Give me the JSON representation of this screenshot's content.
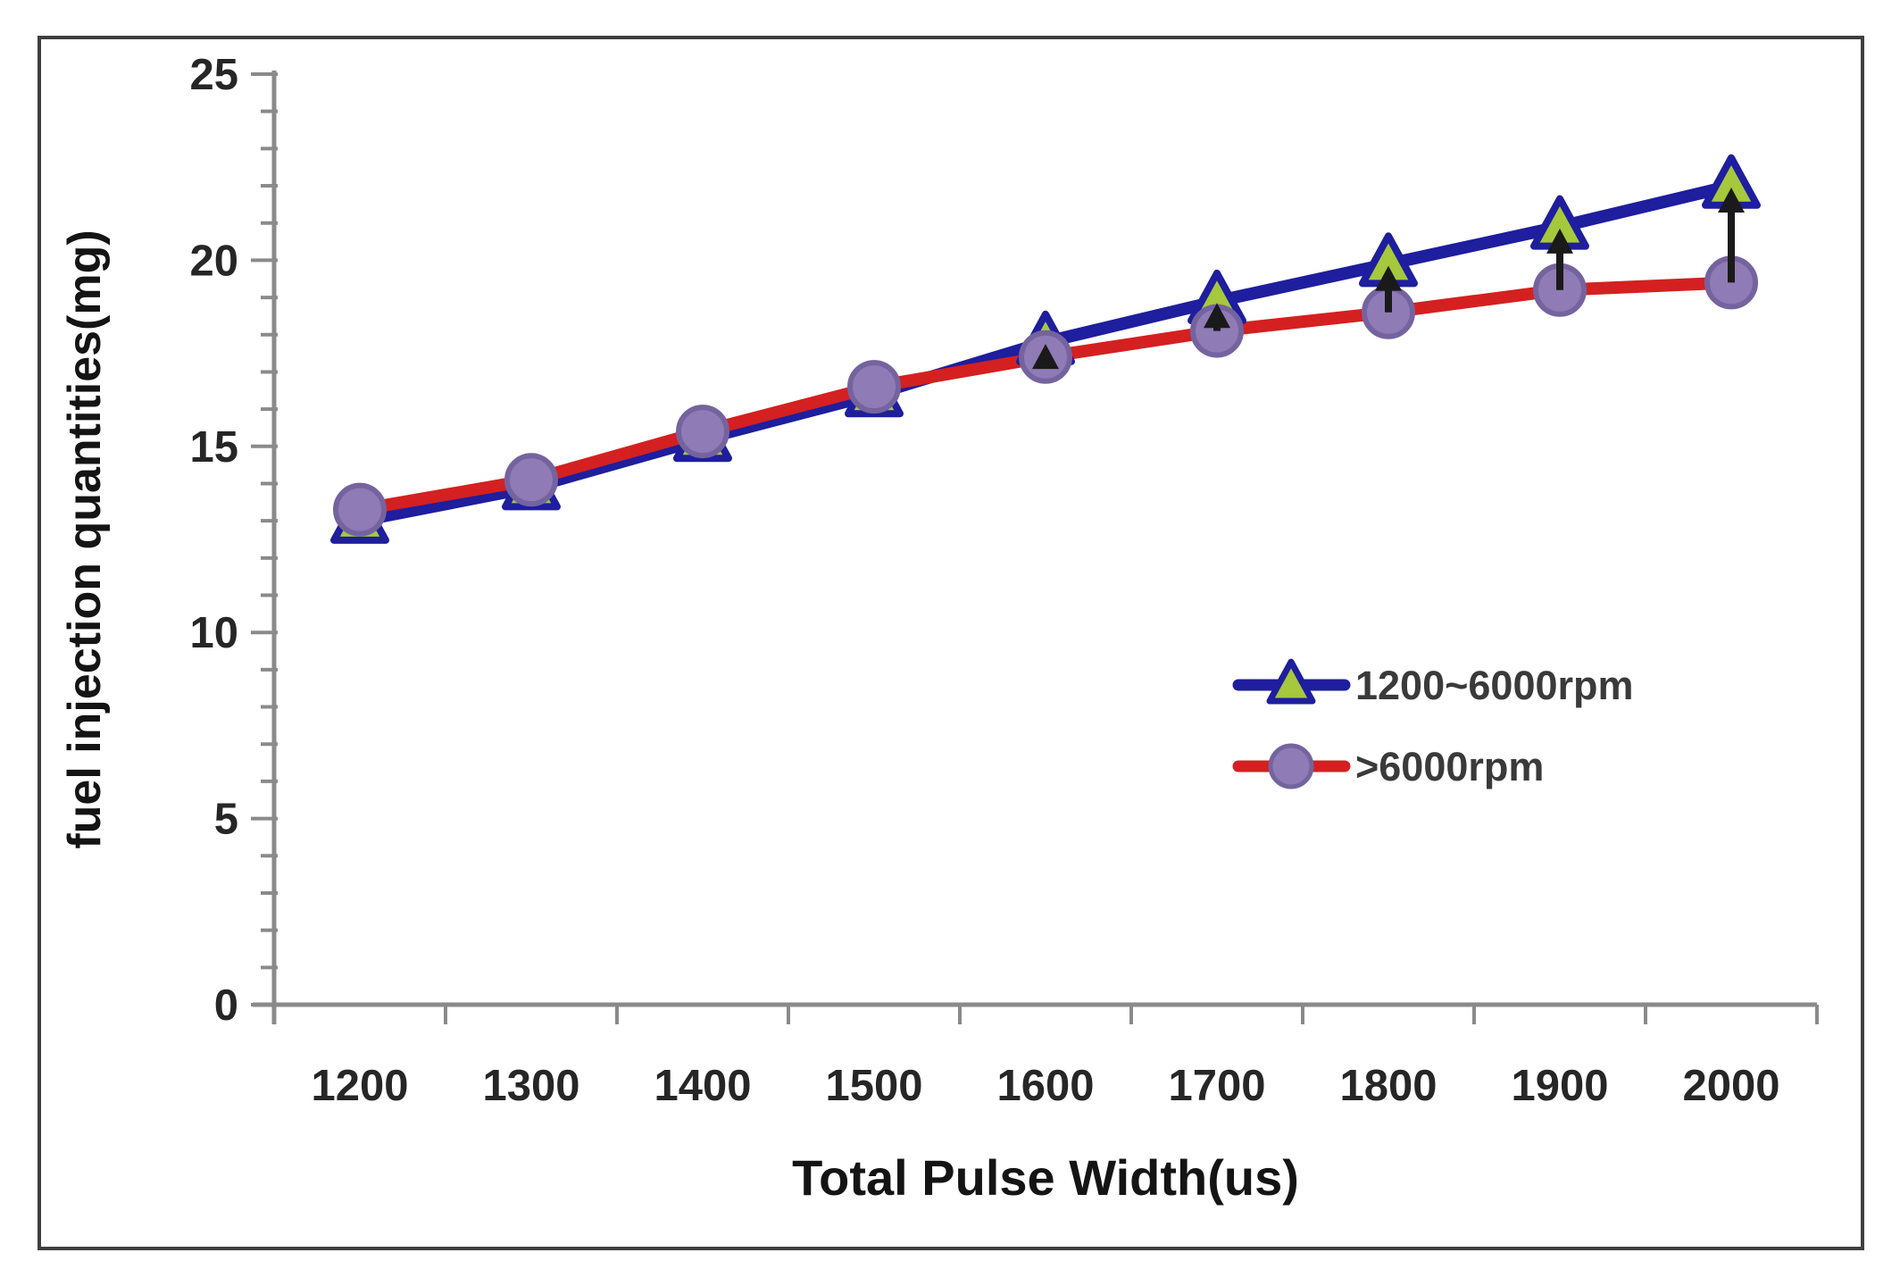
{
  "chart_data": {
    "type": "line",
    "title": "",
    "xlabel": "Total Pulse Width(us)",
    "ylabel": "fuel injection quantities(mg)",
    "x": [
      1200,
      1300,
      1400,
      1500,
      1600,
      1700,
      1800,
      1900,
      2000
    ],
    "xlim": [
      1200,
      2000
    ],
    "ylim": [
      0,
      25
    ],
    "y_major_step": 5,
    "y_minor_step": 1,
    "grid": false,
    "legend_position": "inside-right",
    "series": [
      {
        "name": "1200~6000rpm",
        "color": "#1e1e9e",
        "marker": "triangle",
        "marker_fill": "#a6c83c",
        "marker_stroke": "#1e1e9e",
        "values": [
          13.0,
          13.9,
          15.2,
          16.4,
          17.8,
          18.9,
          19.9,
          20.9,
          22.0
        ]
      },
      {
        "name": ">6000rpm",
        "color": "#d42020",
        "marker": "circle",
        "marker_fill": "#8f7bb5",
        "marker_stroke": "#75639f",
        "values": [
          13.3,
          14.1,
          15.4,
          16.6,
          17.4,
          18.1,
          18.6,
          19.2,
          19.4
        ]
      }
    ],
    "annotations": {
      "arrows_x": [
        1600,
        1700,
        1800,
        1900,
        2000
      ],
      "arrow_color": "#1a1a1a",
      "arrow_direction": "up"
    }
  },
  "colors": {
    "background": "#ffffff",
    "frame": "#3f3f3f",
    "axis": "#8a8a8a",
    "tick_label": "#262626",
    "axis_title": "#141414",
    "legend_text": "#3a3a3a"
  }
}
